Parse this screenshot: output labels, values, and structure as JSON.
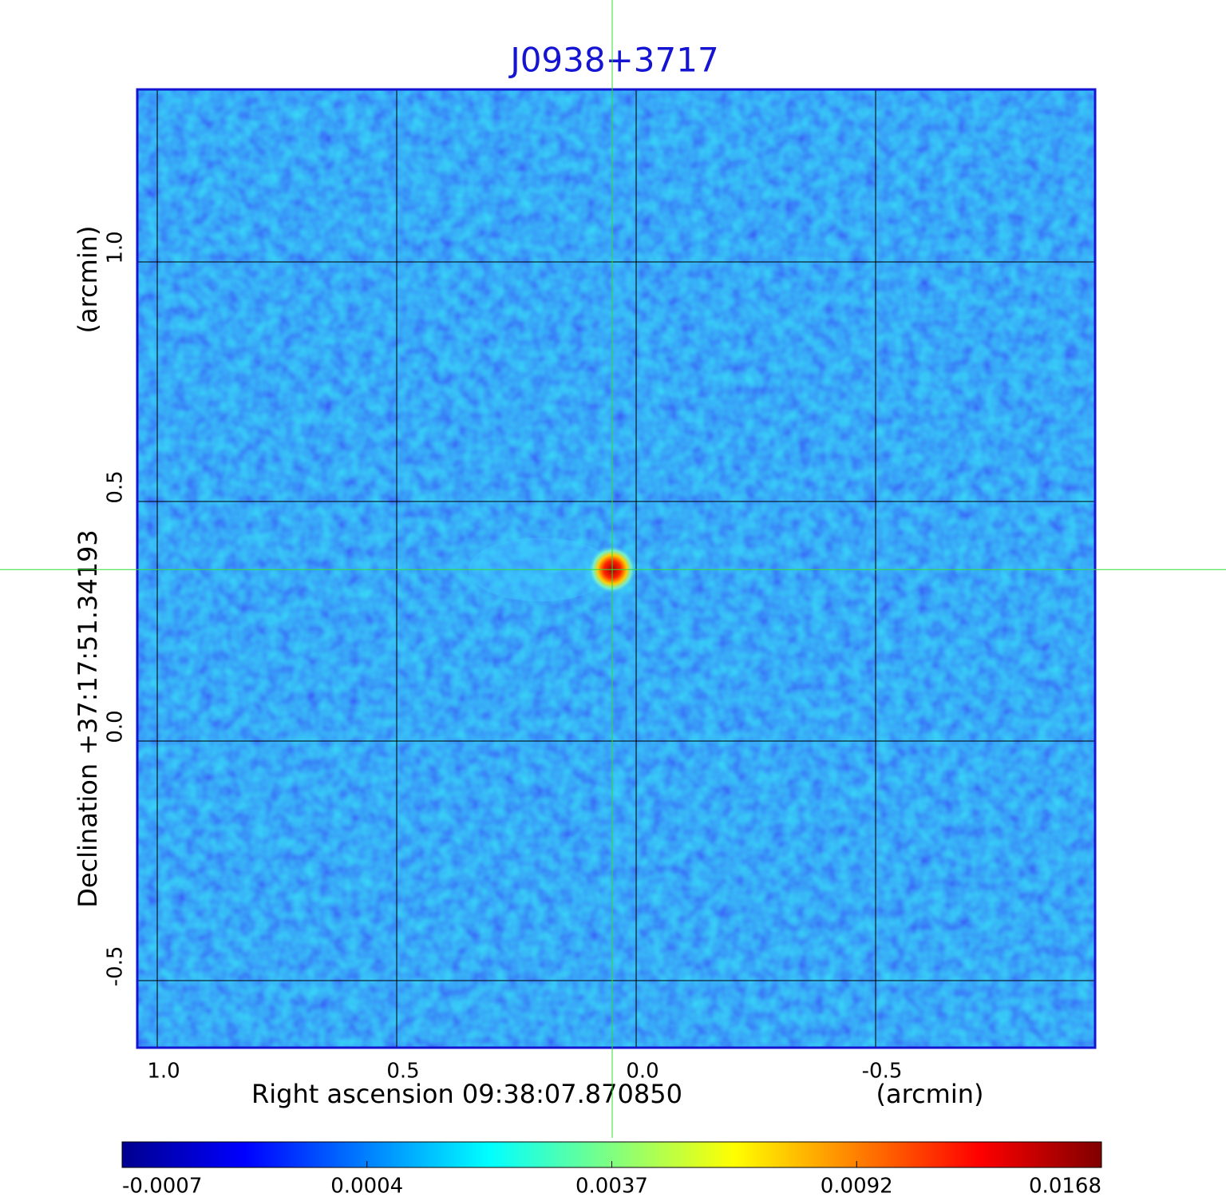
{
  "chart_data": {
    "type": "image",
    "title": "J0938+3717",
    "x_label": "Right ascension  09:38:07.870850",
    "x_unit": "(arcmin)",
    "y_label": "Declination  +37:17:51.34193",
    "y_unit": "(arcmin)",
    "xlim": [
      1.0417,
      -0.9583
    ],
    "ylim": [
      -0.64,
      1.36
    ],
    "xticks": [
      {
        "value": 1,
        "label": "1.0"
      },
      {
        "value": 0.5,
        "label": "0.5"
      },
      {
        "value": 0,
        "label": "0.0"
      },
      {
        "value": -0.5,
        "label": "-0.5"
      }
    ],
    "yticks": [
      {
        "value": -0.5,
        "label": "-0.5"
      },
      {
        "value": 0,
        "label": "0.0"
      },
      {
        "value": 0.5,
        "label": "0.5"
      },
      {
        "value": 1,
        "label": "1.0"
      }
    ],
    "grid": true,
    "marker": {
      "x": 0.05,
      "y": 0.358,
      "color": "#33dd33"
    },
    "colorbar": {
      "ticks": [
        -0.0007,
        0.0004,
        0.0037,
        0.0092,
        0.0168
      ],
      "colors": [
        "#00008f",
        "#0000ff",
        "#0080ff",
        "#00ffff",
        "#80ff80",
        "#ffff00",
        "#ff8000",
        "#ff0000",
        "#800000"
      ]
    }
  }
}
